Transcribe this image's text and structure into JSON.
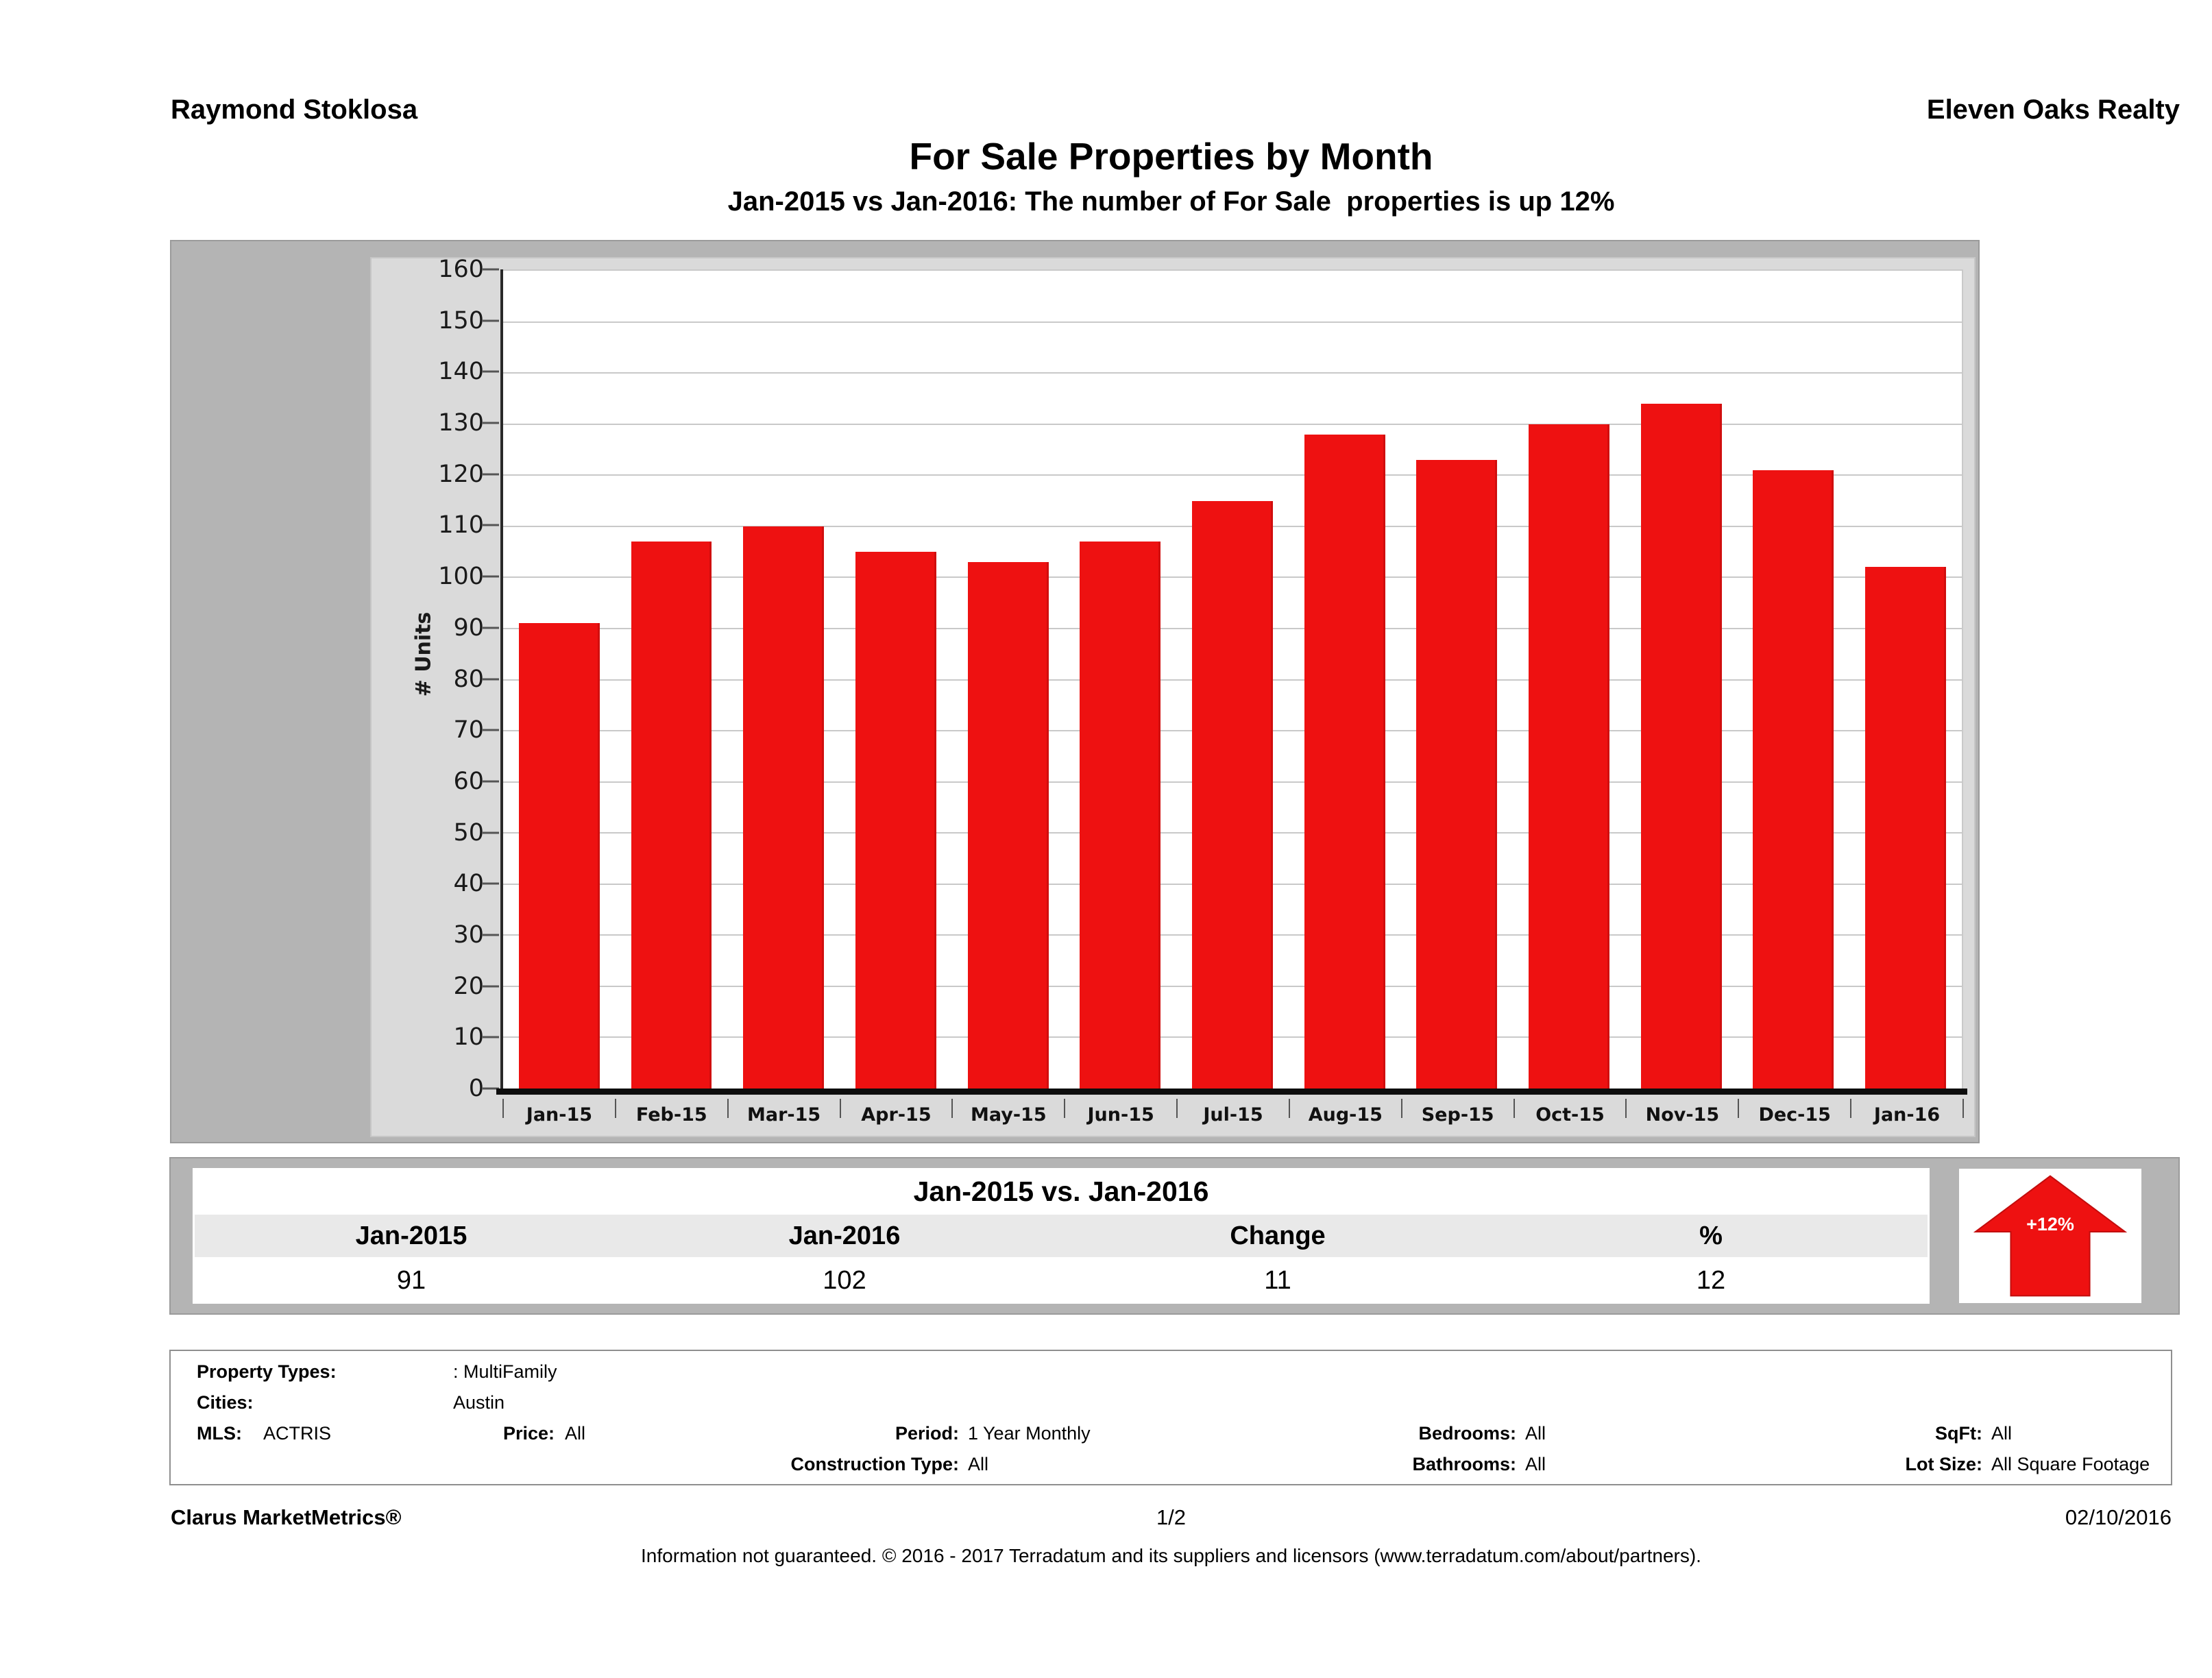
{
  "header": {
    "agent_name": "Raymond Stoklosa",
    "company_name": "Eleven Oaks Realty",
    "title": "For Sale Properties by Month",
    "subtitle": "Jan-2015 vs Jan-2016: The number of For Sale  properties is up 12%"
  },
  "chart_data": {
    "type": "bar",
    "title": "For Sale Properties by Month",
    "categories": [
      "Jan-15",
      "Feb-15",
      "Mar-15",
      "Apr-15",
      "May-15",
      "Jun-15",
      "Jul-15",
      "Aug-15",
      "Sep-15",
      "Oct-15",
      "Nov-15",
      "Dec-15",
      "Jan-16"
    ],
    "values": [
      91,
      107,
      110,
      105,
      103,
      107,
      115,
      128,
      123,
      130,
      134,
      121,
      102
    ],
    "xlabel": "",
    "ylabel": "# Units",
    "ylim": [
      0,
      160
    ],
    "ytick_step": 10,
    "grid": true,
    "legend": "none",
    "bar_color": "#ee1111"
  },
  "summary_table": {
    "title": "Jan-2015 vs. Jan-2016",
    "columns": [
      "Jan-2015",
      "Jan-2016",
      "Change",
      "%"
    ],
    "values": [
      "91",
      "102",
      "11",
      "12"
    ]
  },
  "change_badge": {
    "label": "+12%",
    "color": "#ee1111"
  },
  "filters": {
    "property_types_label": "Property Types:",
    "property_types": ": MultiFamily",
    "cities_label": "Cities:",
    "cities": "Austin",
    "mls_label": "MLS:",
    "mls": "ACTRIS",
    "price_label": "Price:",
    "price": "All",
    "period_label": "Period:",
    "period": "1 Year Monthly",
    "bedrooms_label": "Bedrooms:",
    "bedrooms": "All",
    "sqft_label": "SqFt:",
    "sqft": "All",
    "construction_label": "Construction Type:",
    "construction": "All",
    "bathrooms_label": "Bathrooms:",
    "bathrooms": "All",
    "lot_size_label": "Lot Size:",
    "lot_size": "All Square Footage"
  },
  "footer": {
    "brand": "Clarus MarketMetrics®",
    "page": "1/2",
    "date": "02/10/2016",
    "disclaimer": "Information not guaranteed. © 2016 - 2017 Terradatum and its suppliers and licensors (www.terradatum.com/about/partners)."
  }
}
